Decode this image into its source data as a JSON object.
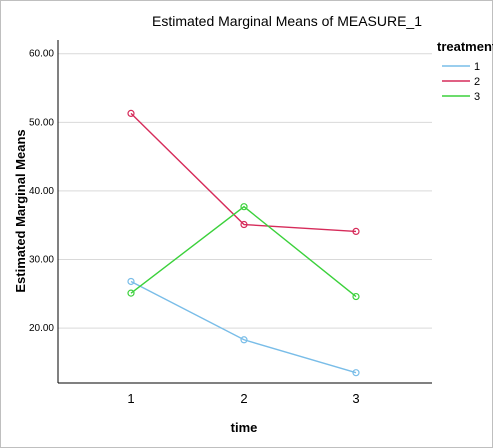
{
  "chart_data": {
    "type": "line",
    "title": "Estimated Marginal Means of MEASURE_1",
    "xlabel": "time",
    "ylabel": "Estimated Marginal Means",
    "categories": [
      "1",
      "2",
      "3"
    ],
    "ylim": [
      12,
      62
    ],
    "yticks": [
      "20.00",
      "30.00",
      "40.00",
      "50.00",
      "60.00"
    ],
    "grid": true,
    "legend_title": "treatment",
    "legend_position": "right",
    "series": [
      {
        "name": "1",
        "color": "#79bde8",
        "values": [
          26.8,
          18.3,
          13.5
        ]
      },
      {
        "name": "2",
        "color": "#d62b5a",
        "values": [
          51.3,
          35.1,
          34.1
        ]
      },
      {
        "name": "3",
        "color": "#3bd13b",
        "values": [
          25.1,
          37.7,
          24.6
        ]
      }
    ]
  }
}
